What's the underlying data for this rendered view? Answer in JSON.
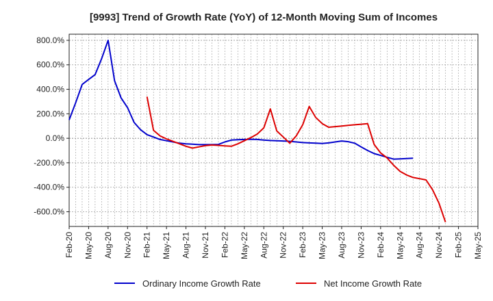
{
  "chart_data": {
    "type": "line",
    "title": "[9993]  Trend of Growth Rate (YoY) of 12-Month Moving Sum of Incomes",
    "xlabel": "",
    "ylabel": "",
    "ylim": [
      -720,
      850
    ],
    "yticks": [
      "800.0%",
      "600.0%",
      "400.0%",
      "200.0%",
      "0.0%",
      "-200.0%",
      "-400.0%",
      "-600.0%"
    ],
    "ytick_values": [
      800,
      600,
      400,
      200,
      0,
      -200,
      -400,
      -600
    ],
    "x_tick_labels": [
      "Feb-20",
      "May-20",
      "Aug-20",
      "Nov-20",
      "Feb-21",
      "May-21",
      "Aug-21",
      "Nov-21",
      "Feb-22",
      "May-22",
      "Aug-22",
      "Nov-22",
      "Feb-23",
      "May-23",
      "Aug-23",
      "Nov-23",
      "Feb-24",
      "May-24",
      "Aug-24",
      "Nov-24",
      "Feb-25",
      "May-25"
    ],
    "grid": true,
    "legend": "bottom",
    "series": [
      {
        "name": "Ordinary Income Growth Rate",
        "color": "#0000cc",
        "start": "Feb-20",
        "values": [
          150,
          290,
          440,
          480,
          520,
          650,
          800,
          470,
          330,
          250,
          130,
          70,
          30,
          10,
          -10,
          -20,
          -30,
          -40,
          -45,
          -48,
          -52,
          -52,
          -52,
          -50,
          -30,
          -15,
          -12,
          -10,
          -8,
          -10,
          -15,
          -18,
          -20,
          -22,
          -25,
          -30,
          -35,
          -38,
          -40,
          -42,
          -38,
          -30,
          -22,
          -28,
          -40,
          -70,
          -100,
          -125,
          -140,
          -155,
          -170,
          -168,
          -165,
          -163
        ]
      },
      {
        "name": "Net Income Growth Rate",
        "color": "#dd0000",
        "start": "Feb-21",
        "values": [
          340,
          65,
          20,
          -5,
          -25,
          -45,
          -65,
          -80,
          -70,
          -60,
          -55,
          -58,
          -62,
          -65,
          -45,
          -20,
          5,
          35,
          85,
          240,
          60,
          10,
          -40,
          20,
          110,
          260,
          170,
          120,
          90,
          95,
          100,
          105,
          110,
          115,
          120,
          -50,
          -120,
          -160,
          -220,
          -270,
          -300,
          -320,
          -330,
          -340,
          -420,
          -530,
          -685
        ]
      }
    ]
  }
}
